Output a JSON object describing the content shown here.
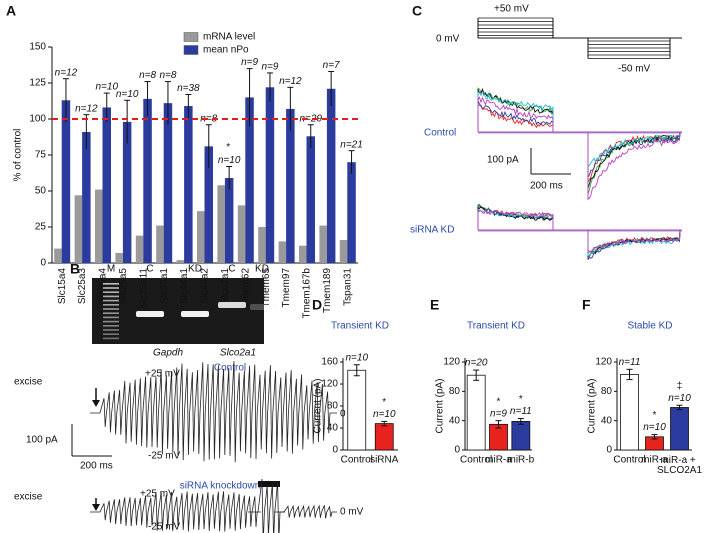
{
  "chart_data": [
    {
      "type": "grouped_bar",
      "panel": "A",
      "ylabel": "% of control",
      "categories": [
        "Slc15a4",
        "Slc25a3",
        "Slc25a4",
        "Slc25a5",
        "Slc25a11",
        "Slc33a1",
        "Slc44a1",
        "Slc44a2",
        "Slco2a1",
        "Tmem62",
        "Tmem65",
        "Tmem97",
        "Tmem167b",
        "Tmem189",
        "Tspan31"
      ],
      "series": [
        {
          "name": "mRNA level",
          "color": "#9a9a9a",
          "values": [
            10,
            47,
            51,
            7,
            19,
            26,
            2,
            36,
            54,
            40,
            25,
            15,
            12,
            26,
            16
          ]
        },
        {
          "name": "mean nPo",
          "color": "#2b3c9e",
          "values": [
            113,
            91,
            108,
            98,
            114,
            111,
            109,
            81,
            59,
            115,
            122,
            107,
            88,
            121,
            70
          ],
          "errors": [
            15,
            12,
            10,
            15,
            12,
            15,
            8,
            15,
            8,
            20,
            10,
            15,
            8,
            12,
            8
          ]
        }
      ],
      "n_labels": [
        "n=12",
        "n=12",
        "n=10",
        "n=10",
        "n=8",
        "n=8",
        "n=38",
        "n=8",
        "n=10",
        "n=9",
        "n=9",
        "n=12",
        "n=29",
        "n=7",
        "n=21"
      ],
      "annotations": [
        {
          "text": "*",
          "category": "Slco2a1"
        }
      ],
      "reference_line": {
        "value": 100,
        "color": "#e0201b"
      },
      "ylim": [
        0,
        150
      ],
      "yticks": [
        0,
        25,
        50,
        75,
        100,
        125,
        150
      ]
    },
    {
      "type": "bar",
      "panel": "D",
      "title": "Transient KD",
      "ylabel": "Current (pA)",
      "categories": [
        "Control",
        "siRNA"
      ],
      "values": [
        145,
        48
      ],
      "errors": [
        10,
        4
      ],
      "colors": [
        "#ffffff",
        "#e8221c"
      ],
      "n_labels": [
        "n=10",
        "n=10"
      ],
      "annotations": [
        {
          "text": "*",
          "category": "siRNA"
        }
      ],
      "ylim": [
        0,
        160
      ],
      "yticks": [
        0,
        40,
        80,
        120,
        160
      ]
    },
    {
      "type": "bar",
      "panel": "E",
      "title": "Transient KD",
      "ylabel": "Current (pA)",
      "categories": [
        "Control",
        "miR-a",
        "miR-b"
      ],
      "values": [
        102,
        35,
        39
      ],
      "errors": [
        7,
        5,
        4
      ],
      "colors": [
        "#ffffff",
        "#e8221c",
        "#2b3c9e"
      ],
      "n_labels": [
        "n=20",
        "n=9",
        "n=11"
      ],
      "annotations": [
        {
          "text": "*",
          "category": "miR-a"
        },
        {
          "text": "*",
          "category": "miR-b"
        }
      ],
      "ylim": [
        0,
        120
      ],
      "yticks": [
        0,
        40,
        80,
        120
      ]
    },
    {
      "type": "bar",
      "panel": "F",
      "title": "Stable KD",
      "ylabel": "Current (pA)",
      "categories": [
        "Control",
        "miR-a",
        "miR-a + SLCO2A1"
      ],
      "values": [
        103,
        18,
        58
      ],
      "errors": [
        7,
        3,
        3
      ],
      "colors": [
        "#ffffff",
        "#e8221c",
        "#2b3c9e"
      ],
      "n_labels": [
        "n=11",
        "n=10",
        "n=10"
      ],
      "annotations": [
        {
          "text": "*",
          "category": "miR-a"
        },
        {
          "text": "‡",
          "category": "miR-a + SLCO2A1"
        }
      ],
      "ylim": [
        0,
        120
      ],
      "yticks": [
        0,
        40,
        80,
        120
      ]
    }
  ],
  "panel_B": {
    "letter": "B",
    "gel_lanes": [
      "M",
      "C",
      "KD",
      "C",
      "KD"
    ],
    "genes": [
      "Gapdh",
      "Slco2a1"
    ],
    "control": {
      "title": "Control",
      "plus": "+25 mV",
      "minus": "-25 mV",
      "zero": "0 mV",
      "excise": "excise"
    },
    "knockdown": {
      "title": "siRNA knockdown",
      "plus": "+25 mV",
      "minus": "-25 mV",
      "zero": "0 mV",
      "excise": "excise"
    },
    "scale_y": "100 pA",
    "scale_x": "200 ms"
  },
  "panel_C": {
    "letter": "C",
    "step_up": "+50 mV",
    "zero": "0 mV",
    "step_down": "-50 mV",
    "control": "Control",
    "knockdown": "siRNA KD",
    "scale_y": "100 pA",
    "scale_x": "200 ms"
  }
}
